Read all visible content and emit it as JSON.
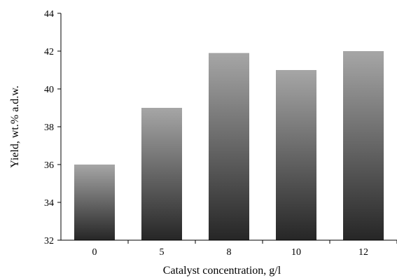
{
  "chart_data": {
    "type": "bar",
    "title": "",
    "xlabel": "Catalyst concentration, g/l",
    "ylabel": "Yield,  wt.% a.d.w.",
    "categories": [
      "0",
      "5",
      "8",
      "10",
      "12"
    ],
    "values": [
      36,
      39,
      41.9,
      41,
      42
    ],
    "ylim": [
      32,
      44
    ],
    "yticks": [
      32,
      34,
      36,
      38,
      40,
      42,
      44
    ],
    "grid": false,
    "bar_gradient": [
      "#a6a6a6",
      "#262626"
    ]
  }
}
